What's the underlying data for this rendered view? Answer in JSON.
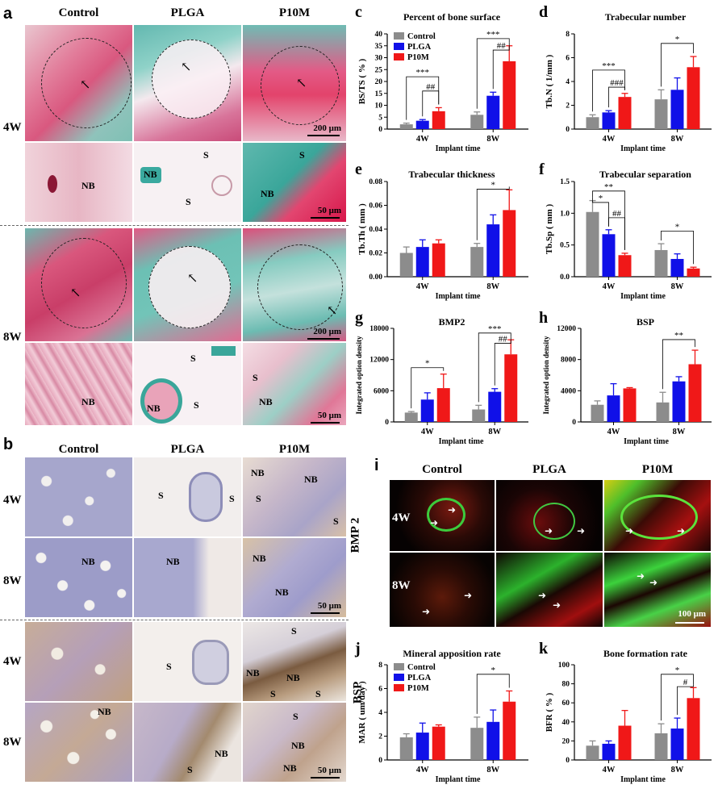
{
  "panel_a": {
    "label": "a",
    "columns": [
      "Control",
      "PLGA",
      "P10M"
    ],
    "rows": [
      "4W",
      "8W"
    ],
    "scale_low": "200 μm",
    "scale_high": "50 μm",
    "labels": {
      "nb": "NB",
      "s": "S"
    }
  },
  "panel_b": {
    "label": "b",
    "columns": [
      "Control",
      "PLGA",
      "P10M"
    ],
    "rows": [
      "4W",
      "8W",
      "4W",
      "8W"
    ],
    "groups": [
      "BMP 2",
      "BSP"
    ],
    "scale": "50 μm",
    "labels": {
      "nb": "NB",
      "s": "S"
    }
  },
  "panel_i": {
    "label": "i",
    "columns": [
      "Control",
      "PLGA",
      "P10M"
    ],
    "rows": [
      "4W",
      "8W"
    ],
    "scale": "100 μm"
  },
  "chart_data": [
    {
      "id": "c",
      "type": "bar",
      "title": "Percent of bone surface",
      "ylabel": "BS/TS ( % )",
      "xlabel": "Implant time",
      "categories": [
        "4W",
        "8W"
      ],
      "ylim": [
        0,
        40
      ],
      "yticks": [
        0,
        5,
        10,
        15,
        20,
        25,
        30,
        35,
        40
      ],
      "legend": [
        "Control",
        "PLGA",
        "P10M"
      ],
      "series": [
        {
          "name": "Control",
          "values": [
            2,
            6
          ],
          "errors": [
            0.5,
            1.2
          ]
        },
        {
          "name": "PLGA",
          "values": [
            3.5,
            14
          ],
          "errors": [
            0.5,
            1.5
          ]
        },
        {
          "name": "P10M",
          "values": [
            7.5,
            28.5
          ],
          "errors": [
            1.5,
            6.5
          ]
        }
      ],
      "annotations": [
        "***",
        "##",
        "***",
        "##"
      ]
    },
    {
      "id": "d",
      "type": "bar",
      "title": "Trabecular number",
      "ylabel": "Tb.N ( 1/mm )",
      "xlabel": "Implant time",
      "categories": [
        "4W",
        "8W"
      ],
      "ylim": [
        0,
        8
      ],
      "yticks": [
        0,
        2,
        4,
        6,
        8
      ],
      "series": [
        {
          "name": "Control",
          "values": [
            1.0,
            2.5
          ],
          "errors": [
            0.2,
            0.8
          ]
        },
        {
          "name": "PLGA",
          "values": [
            1.4,
            3.3
          ],
          "errors": [
            0.15,
            1.0
          ]
        },
        {
          "name": "P10M",
          "values": [
            2.7,
            5.2
          ],
          "errors": [
            0.3,
            0.9
          ]
        }
      ],
      "annotations": [
        "***",
        "###",
        "*"
      ]
    },
    {
      "id": "e",
      "type": "bar",
      "title": "Trabecular thickness",
      "ylabel": "Tb.Th ( mm )",
      "xlabel": "Implant time",
      "categories": [
        "4W",
        "8W"
      ],
      "ylim": [
        0,
        0.08
      ],
      "yticks": [
        "0.00",
        "0.02",
        "0.04",
        "0.06",
        "0.08"
      ],
      "series": [
        {
          "name": "Control",
          "values": [
            0.02,
            0.025
          ],
          "errors": [
            0.005,
            0.003
          ]
        },
        {
          "name": "PLGA",
          "values": [
            0.025,
            0.044
          ],
          "errors": [
            0.006,
            0.008
          ]
        },
        {
          "name": "P10M",
          "values": [
            0.028,
            0.056
          ],
          "errors": [
            0.003,
            0.017
          ]
        }
      ],
      "annotations": [
        "*"
      ]
    },
    {
      "id": "f",
      "type": "bar",
      "title": "Trabecular separation",
      "ylabel": "Tb.Sp ( mm )",
      "xlabel": "Implant time",
      "categories": [
        "4W",
        "8W"
      ],
      "ylim": [
        0,
        1.5
      ],
      "yticks": [
        "0.0",
        "0.5",
        "1.0",
        "1.5"
      ],
      "series": [
        {
          "name": "Control",
          "values": [
            1.02,
            0.42
          ],
          "errors": [
            0.18,
            0.1
          ]
        },
        {
          "name": "PLGA",
          "values": [
            0.67,
            0.28
          ],
          "errors": [
            0.07,
            0.08
          ]
        },
        {
          "name": "P10M",
          "values": [
            0.34,
            0.13
          ],
          "errors": [
            0.03,
            0.02
          ]
        }
      ],
      "annotations": [
        "**",
        "*",
        "##",
        "*"
      ]
    },
    {
      "id": "g",
      "type": "bar",
      "title": "BMP2",
      "ylabel": "Integrated option density",
      "xlabel": "Implant time",
      "categories": [
        "4W",
        "8W"
      ],
      "ylim": [
        0,
        18000
      ],
      "yticks": [
        0,
        6000,
        12000,
        18000
      ],
      "series": [
        {
          "name": "Control",
          "values": [
            1800,
            2400
          ],
          "errors": [
            200,
            800
          ]
        },
        {
          "name": "PLGA",
          "values": [
            4300,
            5800
          ],
          "errors": [
            1300,
            600
          ]
        },
        {
          "name": "P10M",
          "values": [
            6500,
            13000
          ],
          "errors": [
            2700,
            2800
          ]
        }
      ],
      "annotations": [
        "*",
        "***",
        "##"
      ]
    },
    {
      "id": "h",
      "type": "bar",
      "title": "BSP",
      "ylabel": "Integrated option density",
      "xlabel": "Implant time",
      "categories": [
        "4W",
        "8W"
      ],
      "ylim": [
        0,
        12000
      ],
      "yticks": [
        0,
        4000,
        8000,
        12000
      ],
      "series": [
        {
          "name": "Control",
          "values": [
            2200,
            2500
          ],
          "errors": [
            500,
            1300
          ]
        },
        {
          "name": "PLGA",
          "values": [
            3400,
            5200
          ],
          "errors": [
            1500,
            600
          ]
        },
        {
          "name": "P10M",
          "values": [
            4300,
            7400
          ],
          "errors": [
            100,
            1800
          ]
        }
      ],
      "annotations": [
        "**"
      ]
    },
    {
      "id": "j",
      "type": "bar",
      "title": "Mineral apposition rate",
      "ylabel": "MAR ( um/day )",
      "xlabel": "Implant time",
      "categories": [
        "4W",
        "8W"
      ],
      "ylim": [
        0,
        8
      ],
      "yticks": [
        0,
        2,
        4,
        6,
        8
      ],
      "legend": [
        "Control",
        "PLGA",
        "P10M"
      ],
      "series": [
        {
          "name": "Control",
          "values": [
            1.9,
            2.7
          ],
          "errors": [
            0.3,
            0.9
          ]
        },
        {
          "name": "PLGA",
          "values": [
            2.3,
            3.2
          ],
          "errors": [
            0.8,
            1.0
          ]
        },
        {
          "name": "P10M",
          "values": [
            2.8,
            4.9
          ],
          "errors": [
            0.15,
            0.9
          ]
        }
      ],
      "annotations": [
        "*"
      ]
    },
    {
      "id": "k",
      "type": "bar",
      "title": "Bone formation rate",
      "ylabel": "BFR ( % )",
      "xlabel": "Implant time",
      "categories": [
        "4W",
        "8W"
      ],
      "ylim": [
        0,
        100
      ],
      "yticks": [
        0,
        20,
        40,
        60,
        80,
        100
      ],
      "series": [
        {
          "name": "Control",
          "values": [
            15,
            28
          ],
          "errors": [
            5,
            10
          ]
        },
        {
          "name": "PLGA",
          "values": [
            17,
            33
          ],
          "errors": [
            3,
            11
          ]
        },
        {
          "name": "P10M",
          "values": [
            36,
            65
          ],
          "errors": [
            16,
            11
          ]
        }
      ],
      "annotations": [
        "*",
        "#"
      ]
    }
  ],
  "colors": {
    "Control": "#8c8c8c",
    "PLGA": "#1010e8",
    "P10M": "#f01818"
  }
}
